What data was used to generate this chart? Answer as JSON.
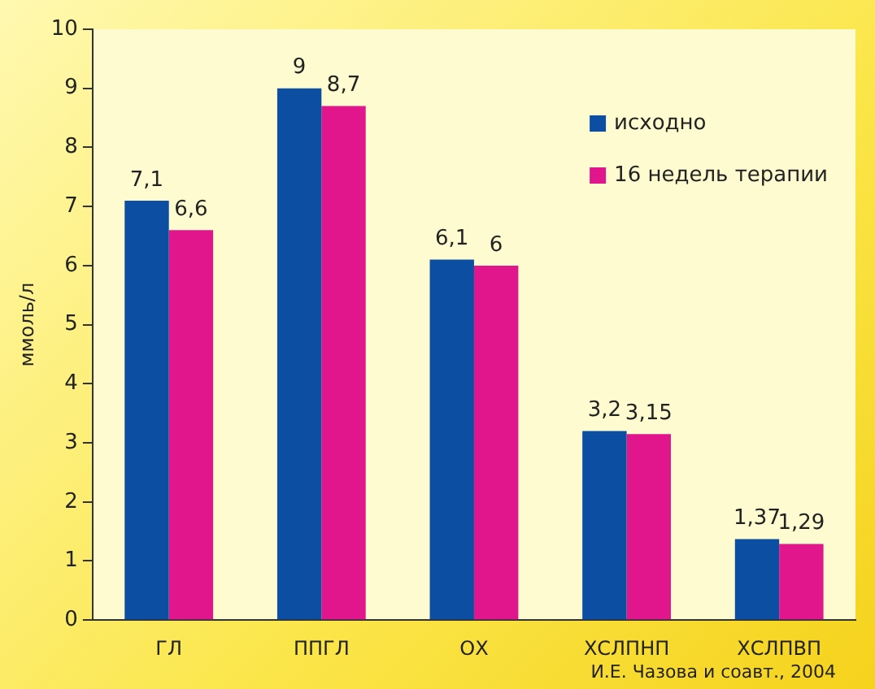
{
  "chart_data": {
    "type": "bar",
    "ylabel": "ммоль/л",
    "categories": [
      "ГЛ",
      "ППГЛ",
      "ОХ",
      "ХСЛПНП",
      "ХСЛПВП"
    ],
    "series": [
      {
        "name": "исходно",
        "color": "#0b4ea2",
        "values": [
          7.1,
          9,
          6.1,
          3.2,
          1.37
        ],
        "value_labels": [
          "7,1",
          "9",
          "6,1",
          "3,2",
          "1,37"
        ]
      },
      {
        "name": "16 недель терапии",
        "color": "#e2168c",
        "values": [
          6.6,
          8.7,
          6,
          3.15,
          1.29
        ],
        "value_labels": [
          "6,6",
          "8,7",
          "6",
          "3,15",
          "1,29"
        ]
      }
    ],
    "ylim": [
      0,
      10
    ],
    "yticks": [
      0,
      1,
      2,
      3,
      4,
      5,
      6,
      7,
      8,
      9,
      10
    ],
    "grid": false,
    "legend": "top right",
    "annotations": [
      "И.Е. Чазова и соавт., 2004"
    ]
  }
}
